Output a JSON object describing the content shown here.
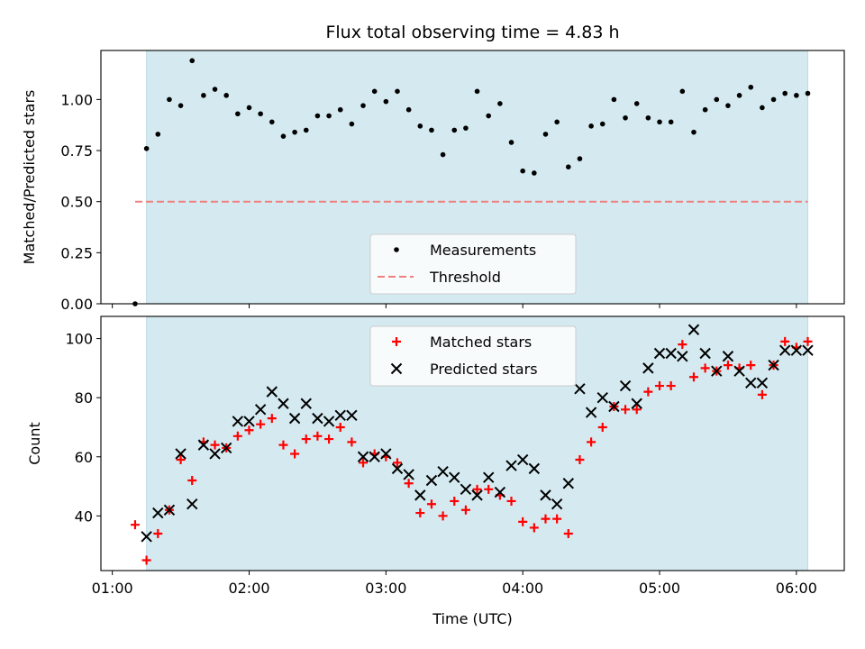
{
  "chart_data": [
    {
      "type": "scatter",
      "title": "Flux total observing time = 4.83 h",
      "ylabel": "Matched/Predicted stars",
      "ylim": [
        0,
        1.24
      ],
      "xlim": [
        "00:55",
        "06:21"
      ],
      "yticks": [
        "0.00",
        "0.25",
        "0.50",
        "0.75",
        "1.00"
      ],
      "shaded_span": [
        "01:15",
        "06:05"
      ],
      "shade_color": "#d4eaf0",
      "legend_position": "lower-center",
      "series": [
        {
          "name": "Measurements",
          "marker": "dot",
          "color": "#000000",
          "x": [
            "01:10",
            "01:15",
            "01:20",
            "01:25",
            "01:30",
            "01:35",
            "01:40",
            "01:45",
            "01:50",
            "01:55",
            "02:00",
            "02:05",
            "02:10",
            "02:15",
            "02:20",
            "02:25",
            "02:30",
            "02:35",
            "02:40",
            "02:45",
            "02:50",
            "02:55",
            "03:00",
            "03:05",
            "03:10",
            "03:15",
            "03:20",
            "03:25",
            "03:30",
            "03:35",
            "03:40",
            "03:45",
            "03:50",
            "03:55",
            "04:00",
            "04:05",
            "04:10",
            "04:15",
            "04:20",
            "04:25",
            "04:30",
            "04:35",
            "04:40",
            "04:45",
            "04:50",
            "04:55",
            "05:00",
            "05:05",
            "05:10",
            "05:15",
            "05:20",
            "05:25",
            "05:30",
            "05:35",
            "05:40",
            "05:45",
            "05:50",
            "05:55",
            "06:00",
            "06:05"
          ],
          "y": [
            0.0,
            0.76,
            0.83,
            1.0,
            0.97,
            1.19,
            1.02,
            1.05,
            1.02,
            0.93,
            0.96,
            0.93,
            0.89,
            0.82,
            0.84,
            0.85,
            0.92,
            0.92,
            0.95,
            0.88,
            0.97,
            1.04,
            0.99,
            1.04,
            0.95,
            0.87,
            0.85,
            0.73,
            0.85,
            0.86,
            1.04,
            0.92,
            0.98,
            0.79,
            0.65,
            0.64,
            0.83,
            0.89,
            0.67,
            0.71,
            0.87,
            0.88,
            1.0,
            0.91,
            0.98,
            0.91,
            0.89,
            0.89,
            1.04,
            0.84,
            0.95,
            1.0,
            0.97,
            1.02,
            1.06,
            0.96,
            1.0,
            1.03,
            1.02,
            1.03
          ]
        },
        {
          "name": "Threshold",
          "marker": "dashed-line",
          "color": "#f08080",
          "x": [
            "01:10",
            "06:05"
          ],
          "y": [
            0.5,
            0.5
          ]
        }
      ]
    },
    {
      "type": "scatter",
      "xlabel": "Time (UTC)",
      "ylabel": "Count",
      "ylim": [
        21.5,
        107.5
      ],
      "xlim": [
        "00:55",
        "06:21"
      ],
      "xticks": [
        "01:00",
        "02:00",
        "03:00",
        "04:00",
        "05:00",
        "06:00"
      ],
      "yticks": [
        "40",
        "60",
        "80",
        "100"
      ],
      "shaded_span": [
        "01:15",
        "06:05"
      ],
      "shade_color": "#d4eaf0",
      "legend_position": "upper-center",
      "series": [
        {
          "name": "Matched stars",
          "marker": "plus",
          "color": "#ff0000",
          "x": [
            "01:10",
            "01:15",
            "01:20",
            "01:25",
            "01:30",
            "01:35",
            "01:40",
            "01:45",
            "01:50",
            "01:55",
            "02:00",
            "02:05",
            "02:10",
            "02:15",
            "02:20",
            "02:25",
            "02:30",
            "02:35",
            "02:40",
            "02:45",
            "02:50",
            "02:55",
            "03:00",
            "03:05",
            "03:10",
            "03:15",
            "03:20",
            "03:25",
            "03:30",
            "03:35",
            "03:40",
            "03:45",
            "03:50",
            "03:55",
            "04:00",
            "04:05",
            "04:10",
            "04:15",
            "04:20",
            "04:25",
            "04:30",
            "04:35",
            "04:40",
            "04:45",
            "04:50",
            "04:55",
            "05:00",
            "05:05",
            "05:10",
            "05:15",
            "05:20",
            "05:25",
            "05:30",
            "05:35",
            "05:40",
            "05:45",
            "05:50",
            "05:55",
            "06:00",
            "06:05"
          ],
          "y": [
            37,
            25,
            34,
            42,
            59,
            52,
            65,
            64,
            63,
            67,
            69,
            71,
            73,
            64,
            61,
            66,
            67,
            66,
            70,
            65,
            58,
            61,
            60,
            58,
            51,
            41,
            44,
            40,
            45,
            42,
            49,
            49,
            47,
            45,
            38,
            36,
            39,
            39,
            34,
            59,
            65,
            70,
            77,
            76,
            76,
            82,
            84,
            84,
            98,
            87,
            90,
            89,
            91,
            90,
            91,
            81,
            91,
            99,
            97,
            99
          ]
        },
        {
          "name": "Predicted stars",
          "marker": "x",
          "color": "#000000",
          "x": [
            "01:15",
            "01:20",
            "01:25",
            "01:30",
            "01:35",
            "01:40",
            "01:45",
            "01:50",
            "01:55",
            "02:00",
            "02:05",
            "02:10",
            "02:15",
            "02:20",
            "02:25",
            "02:30",
            "02:35",
            "02:40",
            "02:45",
            "02:50",
            "02:55",
            "03:00",
            "03:05",
            "03:10",
            "03:15",
            "03:20",
            "03:25",
            "03:30",
            "03:35",
            "03:40",
            "03:45",
            "03:50",
            "03:55",
            "04:00",
            "04:05",
            "04:10",
            "04:15",
            "04:20",
            "04:25",
            "04:30",
            "04:35",
            "04:40",
            "04:45",
            "04:50",
            "04:55",
            "05:00",
            "05:05",
            "05:10",
            "05:15",
            "05:20",
            "05:25",
            "05:30",
            "05:35",
            "05:40",
            "05:45",
            "05:50",
            "05:55",
            "06:00",
            "06:05"
          ],
          "y": [
            33,
            41,
            42,
            61,
            44,
            64,
            61,
            63,
            72,
            72,
            76,
            82,
            78,
            73,
            78,
            73,
            72,
            74,
            74,
            60,
            60,
            61,
            56,
            54,
            47,
            52,
            55,
            53,
            49,
            47,
            53,
            48,
            57,
            59,
            56,
            47,
            44,
            51,
            83,
            75,
            80,
            77,
            84,
            78,
            90,
            95,
            95,
            94,
            103,
            95,
            89,
            94,
            89,
            85,
            85,
            91,
            96,
            96,
            96
          ]
        }
      ]
    }
  ]
}
